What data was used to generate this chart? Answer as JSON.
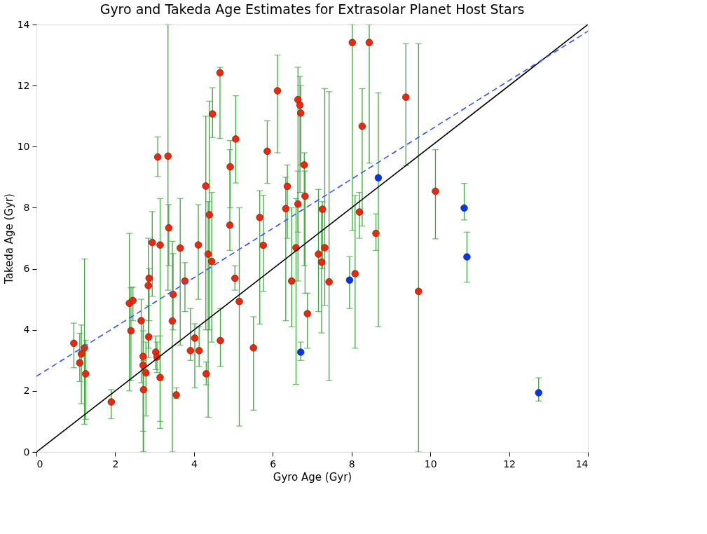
{
  "chart_data": {
    "type": "scatter",
    "title": "Gyro and Takeda Age Estimates for Extrasolar Planet Host Stars",
    "xlabel": "Gyro Age (Gyr)",
    "ylabel": "Takeda Age (Gyr)",
    "xlim": [
      0,
      14
    ],
    "ylim": [
      0,
      14
    ],
    "xticks": [
      0,
      2,
      4,
      6,
      8,
      10,
      12,
      14
    ],
    "yticks": [
      0,
      2,
      4,
      6,
      8,
      10,
      12,
      14
    ],
    "grid": false,
    "marker": "circle",
    "series": [
      {
        "color": "#ff2200",
        "x": [
          0.95,
          1.1,
          1.14,
          1.22,
          1.25,
          1.9,
          2.36,
          2.4,
          2.45,
          2.66,
          2.71,
          2.71,
          2.72,
          2.78,
          2.84,
          2.85,
          2.86,
          2.94,
          3.03,
          3.06,
          3.08,
          3.14,
          3.14,
          3.34,
          3.36,
          3.45,
          3.47,
          3.55,
          3.65,
          3.77,
          3.91,
          4.02,
          4.11,
          4.13,
          4.3,
          4.31,
          4.36,
          4.39,
          4.45,
          4.47,
          4.66,
          4.67,
          4.91,
          4.92,
          5.04,
          5.06,
          5.15,
          5.51,
          5.67,
          5.76,
          5.86,
          6.12,
          6.33,
          6.37,
          6.48,
          6.59,
          6.64,
          6.64,
          6.69,
          6.71,
          6.8,
          6.82,
          6.88,
          7.16,
          7.24,
          7.26,
          7.32,
          7.43,
          8.02,
          8.09,
          8.2,
          8.27,
          8.45,
          8.62,
          9.38,
          9.7,
          10.13
        ],
        "values": [
          3.56,
          2.92,
          3.21,
          3.41,
          2.56,
          1.64,
          4.87,
          3.97,
          4.96,
          4.3,
          3.13,
          2.84,
          2.04,
          2.59,
          5.45,
          3.77,
          5.69,
          6.86,
          3.27,
          3.11,
          9.66,
          6.78,
          2.44,
          9.69,
          7.34,
          4.29,
          5.16,
          1.87,
          6.68,
          5.6,
          3.32,
          3.73,
          6.78,
          3.32,
          8.71,
          2.56,
          6.48,
          7.77,
          6.24,
          11.07,
          12.42,
          3.65,
          7.43,
          9.34,
          5.69,
          10.25,
          4.93,
          3.41,
          7.68,
          6.77,
          9.85,
          11.83,
          7.97,
          8.7,
          5.6,
          6.69,
          11.54,
          8.12,
          11.36,
          11.1,
          9.4,
          8.38,
          4.53,
          6.48,
          6.22,
          7.95,
          6.69,
          5.57,
          13.41,
          5.84,
          7.86,
          10.67,
          13.41,
          7.16,
          11.62,
          5.26,
          8.54
        ],
        "errors": [
          [
            2.76,
            4.22
          ],
          [
            2.31,
            3.89
          ],
          [
            1.58,
            4.16
          ],
          [
            0.91,
            6.32
          ],
          [
            1.07,
            3.66
          ],
          [
            1.09,
            2.04
          ],
          [
            2.0,
            7.16
          ],
          [
            2.34,
            5.38
          ],
          [
            4.3,
            5.4
          ],
          [
            2.27,
            5.0
          ],
          [
            0,
            4.33
          ],
          [
            0.68,
            3.97
          ],
          [
            0,
            3.0
          ],
          [
            1.18,
            3.6
          ],
          [
            3.1,
            7.0
          ],
          [
            3.4,
            4.8
          ],
          [
            4.3,
            6.0
          ],
          [
            5.1,
            7.87
          ],
          [
            2.7,
            3.8
          ],
          [
            2.6,
            3.6
          ],
          [
            9.02,
            10.32
          ],
          [
            0.77,
            8.3
          ],
          [
            1.0,
            3.8
          ],
          [
            5.3,
            14
          ],
          [
            6.1,
            8.1
          ],
          [
            0,
            6.9
          ],
          [
            4.0,
            6.5
          ],
          [
            1.75,
            2.1
          ],
          [
            3.5,
            8.3
          ],
          [
            4.6,
            6.2
          ],
          [
            3.0,
            4.7
          ],
          [
            2.1,
            4.2
          ],
          [
            5.0,
            8.1
          ],
          [
            2.8,
            4.1
          ],
          [
            4.0,
            11.0
          ],
          [
            2.2,
            2.95
          ],
          [
            1.14,
            8.2
          ],
          [
            4.0,
            11.49
          ],
          [
            3.6,
            8.5
          ],
          [
            10.3,
            11.93
          ],
          [
            10.27,
            12.6
          ],
          [
            2.8,
            4.7
          ],
          [
            6.6,
            9.9
          ],
          [
            8.0,
            10.2
          ],
          [
            5.3,
            6.1
          ],
          [
            8.81,
            11.67
          ],
          [
            0.85,
            8.0
          ],
          [
            1.37,
            4.43
          ],
          [
            4.19,
            8.56
          ],
          [
            5.26,
            8.41
          ],
          [
            8.8,
            10.85
          ],
          [
            9.8,
            13.0
          ],
          [
            4.3,
            9.0
          ],
          [
            7.0,
            9.4
          ],
          [
            4.1,
            8.0
          ],
          [
            2.21,
            8.3
          ],
          [
            7.2,
            12.6
          ],
          [
            5.6,
            9.2
          ],
          [
            8.5,
            12.3
          ],
          [
            9.4,
            12.0
          ],
          [
            6.1,
            9.8
          ],
          [
            5.2,
            9.2
          ],
          [
            3.4,
            5.2
          ],
          [
            4.6,
            8.6
          ],
          [
            3.9,
            8.0
          ],
          [
            6.0,
            8.2
          ],
          [
            4.8,
            11.9
          ],
          [
            2.34,
            11.8
          ],
          [
            7.26,
            14
          ],
          [
            3.4,
            8.4
          ],
          [
            7.0,
            8.5
          ],
          [
            7.4,
            11.9
          ],
          [
            9.46,
            14
          ],
          [
            6.6,
            7.8
          ],
          [
            9.38,
            13.37
          ],
          [
            0,
            13.37
          ],
          [
            6.98,
            9.9
          ]
        ]
      },
      {
        "color": "#0033ff",
        "x": [
          6.71,
          7.95,
          8.68,
          10.86,
          10.93,
          12.75
        ],
        "values": [
          3.27,
          5.63,
          8.98,
          7.99,
          6.39,
          1.94
        ],
        "errors": [
          [
            3.0,
            3.6
          ],
          [
            4.7,
            6.4
          ],
          [
            4.1,
            11.76
          ],
          [
            7.6,
            8.8
          ],
          [
            5.56,
            7.2
          ],
          [
            1.67,
            2.43
          ]
        ]
      },
      {
        "type": "line",
        "color": "#000000",
        "line_style": "solid",
        "marker": "none",
        "x": [
          0,
          14
        ],
        "values": [
          0,
          14
        ]
      },
      {
        "type": "line",
        "color": "#3355ff",
        "line_style": "dashed",
        "marker": "none",
        "x": [
          0,
          14
        ],
        "values": [
          2.48,
          13.78
        ]
      }
    ]
  }
}
